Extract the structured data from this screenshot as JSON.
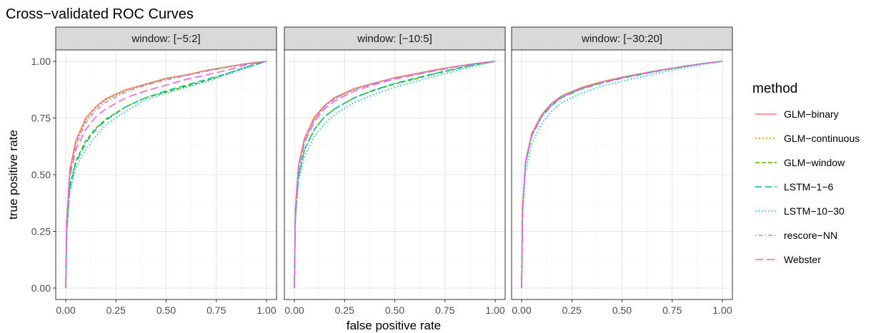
{
  "chart_data": {
    "type": "line",
    "title": "Cross−validated ROC Curves",
    "xlabel": "false positive rate",
    "ylabel": "true positive rate",
    "xlim": [
      0,
      1
    ],
    "ylim": [
      0,
      1
    ],
    "x_ticks": [
      "0.00",
      "0.25",
      "0.50",
      "0.75",
      "1.00"
    ],
    "y_ticks": [
      "0.00",
      "0.25",
      "0.50",
      "0.75",
      "1.00"
    ],
    "grid": true,
    "legend": {
      "title": "method",
      "placement": "right"
    },
    "series_styles": [
      {
        "name": "GLM−binary",
        "color": "#F8766D",
        "dash": ""
      },
      {
        "name": "GLM−continuous",
        "color": "#C49A00",
        "dash": "2,3"
      },
      {
        "name": "GLM−window",
        "color": "#53B400",
        "dash": "6,3"
      },
      {
        "name": "LSTM−1−6",
        "color": "#00C094",
        "dash": "9,5"
      },
      {
        "name": "LSTM−10−30",
        "color": "#00B6EB",
        "dash": "1.5,3"
      },
      {
        "name": "rescore−NN",
        "color": "#A58AFF",
        "dash": "1.5,3,6,3"
      },
      {
        "name": "Webster",
        "color": "#FB61D7",
        "dash": "11,5"
      }
    ],
    "panels": [
      {
        "label": "window: [−5:2]",
        "series": [
          {
            "name": "GLM−binary",
            "x": [
              0,
              0.005,
              0.02,
              0.05,
              0.1,
              0.15,
              0.2,
              0.3,
              0.4,
              0.5,
              0.6,
              0.7,
              0.8,
              0.9,
              1
            ],
            "y": [
              0,
              0.3,
              0.52,
              0.65,
              0.75,
              0.8,
              0.835,
              0.875,
              0.9,
              0.925,
              0.94,
              0.96,
              0.975,
              0.99,
              1
            ]
          },
          {
            "name": "GLM−continuous",
            "x": [
              0,
              0.005,
              0.02,
              0.05,
              0.1,
              0.15,
              0.2,
              0.3,
              0.4,
              0.5,
              0.6,
              0.7,
              0.8,
              0.9,
              1
            ],
            "y": [
              0,
              0.3,
              0.51,
              0.64,
              0.74,
              0.795,
              0.83,
              0.87,
              0.898,
              0.922,
              0.94,
              0.958,
              0.975,
              0.99,
              1
            ]
          },
          {
            "name": "GLM−window",
            "x": [
              0,
              0.005,
              0.02,
              0.05,
              0.1,
              0.15,
              0.2,
              0.3,
              0.4,
              0.5,
              0.6,
              0.7,
              0.8,
              0.9,
              1
            ],
            "y": [
              0,
              0.26,
              0.45,
              0.56,
              0.65,
              0.705,
              0.745,
              0.8,
              0.84,
              0.865,
              0.89,
              0.915,
              0.945,
              0.975,
              1
            ]
          },
          {
            "name": "LSTM−1−6",
            "x": [
              0,
              0.005,
              0.02,
              0.05,
              0.1,
              0.15,
              0.2,
              0.3,
              0.4,
              0.5,
              0.6,
              0.7,
              0.8,
              0.9,
              1
            ],
            "y": [
              0,
              0.25,
              0.44,
              0.55,
              0.64,
              0.7,
              0.74,
              0.8,
              0.84,
              0.87,
              0.895,
              0.92,
              0.945,
              0.975,
              1
            ]
          },
          {
            "name": "LSTM−10−30",
            "x": [
              0,
              0.005,
              0.02,
              0.05,
              0.1,
              0.15,
              0.2,
              0.3,
              0.4,
              0.5,
              0.6,
              0.7,
              0.8,
              0.9,
              1
            ],
            "y": [
              0,
              0.24,
              0.42,
              0.53,
              0.61,
              0.67,
              0.72,
              0.78,
              0.83,
              0.86,
              0.885,
              0.91,
              0.94,
              0.97,
              1
            ]
          },
          {
            "name": "rescore−NN",
            "x": [
              0,
              0.005,
              0.02,
              0.05,
              0.1,
              0.15,
              0.2,
              0.3,
              0.4,
              0.5,
              0.6,
              0.7,
              0.8,
              0.9,
              1
            ],
            "y": [
              0,
              0.29,
              0.5,
              0.63,
              0.73,
              0.785,
              0.82,
              0.865,
              0.895,
              0.918,
              0.937,
              0.956,
              0.973,
              0.988,
              1
            ]
          },
          {
            "name": "Webster",
            "x": [
              0,
              0.005,
              0.02,
              0.05,
              0.1,
              0.15,
              0.2,
              0.3,
              0.4,
              0.5,
              0.6,
              0.7,
              0.8,
              0.9,
              1
            ],
            "y": [
              0,
              0.28,
              0.49,
              0.61,
              0.7,
              0.755,
              0.79,
              0.84,
              0.87,
              0.895,
              0.92,
              0.94,
              0.96,
              0.985,
              1
            ]
          }
        ]
      },
      {
        "label": "window: [−10:5]",
        "series": [
          {
            "name": "GLM−binary",
            "x": [
              0,
              0.005,
              0.02,
              0.05,
              0.1,
              0.15,
              0.2,
              0.3,
              0.4,
              0.5,
              0.6,
              0.7,
              0.8,
              0.9,
              1
            ],
            "y": [
              0,
              0.35,
              0.54,
              0.66,
              0.755,
              0.805,
              0.84,
              0.88,
              0.905,
              0.928,
              0.945,
              0.962,
              0.977,
              0.99,
              1
            ]
          },
          {
            "name": "GLM−continuous",
            "x": [
              0,
              0.005,
              0.02,
              0.05,
              0.1,
              0.15,
              0.2,
              0.3,
              0.4,
              0.5,
              0.6,
              0.7,
              0.8,
              0.9,
              1
            ],
            "y": [
              0,
              0.34,
              0.53,
              0.65,
              0.745,
              0.8,
              0.835,
              0.877,
              0.903,
              0.926,
              0.943,
              0.96,
              0.976,
              0.99,
              1
            ]
          },
          {
            "name": "GLM−window",
            "x": [
              0,
              0.005,
              0.02,
              0.05,
              0.1,
              0.15,
              0.2,
              0.3,
              0.4,
              0.5,
              0.6,
              0.7,
              0.8,
              0.9,
              1
            ],
            "y": [
              0,
              0.31,
              0.49,
              0.61,
              0.7,
              0.755,
              0.79,
              0.84,
              0.873,
              0.9,
              0.922,
              0.945,
              0.965,
              0.985,
              1
            ]
          },
          {
            "name": "LSTM−1−6",
            "x": [
              0,
              0.005,
              0.02,
              0.05,
              0.1,
              0.15,
              0.2,
              0.3,
              0.4,
              0.5,
              0.6,
              0.7,
              0.8,
              0.9,
              1
            ],
            "y": [
              0,
              0.31,
              0.49,
              0.61,
              0.7,
              0.755,
              0.79,
              0.84,
              0.875,
              0.902,
              0.925,
              0.947,
              0.967,
              0.986,
              1
            ]
          },
          {
            "name": "LSTM−10−30",
            "x": [
              0,
              0.005,
              0.02,
              0.05,
              0.1,
              0.15,
              0.2,
              0.3,
              0.4,
              0.5,
              0.6,
              0.7,
              0.8,
              0.9,
              1
            ],
            "y": [
              0,
              0.29,
              0.47,
              0.58,
              0.67,
              0.725,
              0.765,
              0.82,
              0.855,
              0.885,
              0.91,
              0.935,
              0.957,
              0.98,
              1
            ]
          },
          {
            "name": "rescore−NN",
            "x": [
              0,
              0.005,
              0.02,
              0.05,
              0.1,
              0.15,
              0.2,
              0.3,
              0.4,
              0.5,
              0.6,
              0.7,
              0.8,
              0.9,
              1
            ],
            "y": [
              0,
              0.34,
              0.53,
              0.65,
              0.745,
              0.8,
              0.835,
              0.877,
              0.903,
              0.926,
              0.943,
              0.96,
              0.976,
              0.99,
              1
            ]
          },
          {
            "name": "Webster",
            "x": [
              0,
              0.005,
              0.02,
              0.05,
              0.1,
              0.15,
              0.2,
              0.3,
              0.4,
              0.5,
              0.6,
              0.7,
              0.8,
              0.9,
              1
            ],
            "y": [
              0,
              0.33,
              0.52,
              0.64,
              0.735,
              0.79,
              0.825,
              0.87,
              0.898,
              0.922,
              0.94,
              0.958,
              0.975,
              0.99,
              1
            ]
          }
        ]
      },
      {
        "label": "window: [−30:20]",
        "series": [
          {
            "name": "GLM−binary",
            "x": [
              0,
              0.005,
              0.02,
              0.05,
              0.1,
              0.15,
              0.2,
              0.3,
              0.4,
              0.5,
              0.6,
              0.7,
              0.8,
              0.9,
              1
            ],
            "y": [
              0,
              0.36,
              0.56,
              0.68,
              0.765,
              0.815,
              0.848,
              0.885,
              0.91,
              0.93,
              0.947,
              0.963,
              0.977,
              0.99,
              1
            ]
          },
          {
            "name": "GLM−continuous",
            "x": [
              0,
              0.005,
              0.02,
              0.05,
              0.1,
              0.15,
              0.2,
              0.3,
              0.4,
              0.5,
              0.6,
              0.7,
              0.8,
              0.9,
              1
            ],
            "y": [
              0,
              0.36,
              0.56,
              0.68,
              0.765,
              0.815,
              0.848,
              0.885,
              0.91,
              0.93,
              0.947,
              0.963,
              0.977,
              0.99,
              1
            ]
          },
          {
            "name": "GLM−window",
            "x": [
              0,
              0.005,
              0.02,
              0.05,
              0.1,
              0.15,
              0.2,
              0.3,
              0.4,
              0.5,
              0.6,
              0.7,
              0.8,
              0.9,
              1
            ],
            "y": [
              0,
              0.35,
              0.55,
              0.67,
              0.76,
              0.81,
              0.843,
              0.88,
              0.906,
              0.927,
              0.945,
              0.961,
              0.976,
              0.99,
              1
            ]
          },
          {
            "name": "LSTM−1−6",
            "x": [
              0,
              0.005,
              0.02,
              0.05,
              0.1,
              0.15,
              0.2,
              0.3,
              0.4,
              0.5,
              0.6,
              0.7,
              0.8,
              0.9,
              1
            ],
            "y": [
              0,
              0.35,
              0.55,
              0.67,
              0.755,
              0.805,
              0.84,
              0.878,
              0.904,
              0.925,
              0.943,
              0.96,
              0.975,
              0.989,
              1
            ]
          },
          {
            "name": "LSTM−10−30",
            "x": [
              0,
              0.005,
              0.02,
              0.05,
              0.1,
              0.15,
              0.2,
              0.3,
              0.4,
              0.5,
              0.6,
              0.7,
              0.8,
              0.9,
              1
            ],
            "y": [
              0,
              0.32,
              0.51,
              0.635,
              0.725,
              0.78,
              0.818,
              0.86,
              0.89,
              0.912,
              0.932,
              0.952,
              0.97,
              0.986,
              1
            ]
          },
          {
            "name": "rescore−NN",
            "x": [
              0,
              0.005,
              0.02,
              0.05,
              0.1,
              0.15,
              0.2,
              0.3,
              0.4,
              0.5,
              0.6,
              0.7,
              0.8,
              0.9,
              1
            ],
            "y": [
              0,
              0.36,
              0.56,
              0.68,
              0.763,
              0.813,
              0.846,
              0.883,
              0.908,
              0.929,
              0.946,
              0.962,
              0.977,
              0.99,
              1
            ]
          },
          {
            "name": "Webster",
            "x": [
              0,
              0.005,
              0.02,
              0.05,
              0.1,
              0.15,
              0.2,
              0.3,
              0.4,
              0.5,
              0.6,
              0.7,
              0.8,
              0.9,
              1
            ],
            "y": [
              0,
              0.35,
              0.55,
              0.67,
              0.757,
              0.808,
              0.842,
              0.88,
              0.906,
              0.927,
              0.945,
              0.961,
              0.976,
              0.99,
              1
            ]
          }
        ]
      }
    ]
  }
}
